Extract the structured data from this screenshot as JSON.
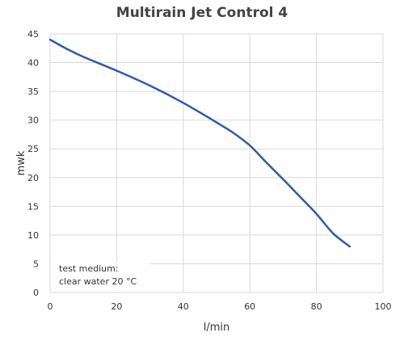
{
  "chart_data": {
    "type": "line",
    "title": "Multirain Jet Control 4",
    "xlabel": "l/min",
    "ylabel": "mwk",
    "xlim": [
      0,
      100
    ],
    "ylim": [
      0,
      45
    ],
    "xticks": [
      0,
      20,
      40,
      60,
      80,
      100
    ],
    "yticks": [
      0,
      5,
      10,
      15,
      20,
      25,
      30,
      35,
      40,
      45
    ],
    "grid": true,
    "annotation": [
      "test medium:",
      "clear water 20 °C"
    ],
    "series": [
      {
        "color": "#2e59b7",
        "x": [
          0,
          5,
          10,
          20,
          30,
          40,
          50,
          55,
          60,
          65,
          70,
          75,
          80,
          85,
          90
        ],
        "y": [
          44,
          42.4,
          41,
          38.6,
          36,
          33,
          29.6,
          27.8,
          25.6,
          22.6,
          19.7,
          16.7,
          13.7,
          10.3,
          8
        ]
      }
    ]
  }
}
